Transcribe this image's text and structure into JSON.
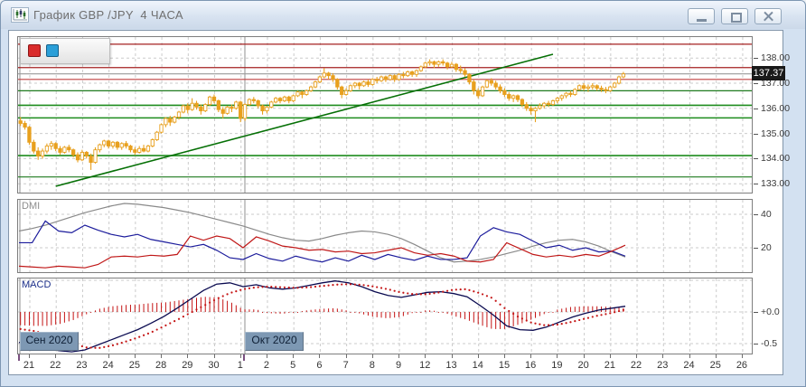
{
  "window": {
    "title": "График GBP /JPY  4 ЧАСА",
    "controls": [
      {
        "name": "minimize"
      },
      {
        "name": "restore"
      },
      {
        "name": "close"
      }
    ]
  },
  "mini_toolbar": {
    "buttons": [
      {
        "name": "red-marker",
        "color": "#d92b2b"
      },
      {
        "name": "blue-marker",
        "color": "#2b9fd8"
      }
    ]
  },
  "chart_data": {
    "main": {
      "type": "candlestick",
      "symbol": "GBP/JPY",
      "timeframe": "4 ЧАСА",
      "current_price": "137.37",
      "candle_color": "#e8a01e",
      "y_axis": {
        "ticks": [
          "138.00",
          "137.00",
          "136.00",
          "135.00",
          "134.00",
          "133.00"
        ],
        "values": [
          138,
          137,
          136,
          135,
          134,
          133
        ]
      },
      "h_lines": [
        {
          "price": 138.55,
          "color": "#a52020",
          "w": 1.2
        },
        {
          "price": 137.62,
          "color": "#a52020",
          "w": 1.2
        },
        {
          "price": 137.15,
          "color": "#c04040",
          "w": 1.1
        },
        {
          "price": 137.37,
          "color": "#9a9a9a",
          "w": 1.1
        },
        {
          "price": 136.7,
          "color": "#1e7a1e",
          "w": 1.2
        },
        {
          "price": 136.12,
          "color": "#1e8c1e",
          "w": 1.6
        },
        {
          "price": 135.62,
          "color": "#1e8c1e",
          "w": 1.6
        },
        {
          "price": 134.12,
          "color": "#1e8c1e",
          "w": 1.6
        },
        {
          "price": 133.27,
          "color": "#1e7a1e",
          "w": 1.2
        }
      ],
      "trend_line": {
        "i1": 8,
        "p1": 132.9,
        "i2": 121,
        "p2": 138.15,
        "color": "#067006"
      },
      "candles": [
        [
          135.5,
          135.65,
          135.3,
          135.4
        ],
        [
          135.4,
          135.5,
          135.15,
          135.25
        ],
        [
          135.25,
          135.3,
          134.55,
          134.65
        ],
        [
          134.65,
          134.75,
          134.2,
          134.3
        ],
        [
          134.3,
          134.45,
          133.95,
          134.1
        ],
        [
          134.1,
          134.4,
          134.0,
          134.3
        ],
        [
          134.3,
          134.6,
          134.2,
          134.5
        ],
        [
          134.5,
          134.7,
          134.35,
          134.6
        ],
        [
          134.6,
          134.65,
          134.3,
          134.4
        ],
        [
          134.4,
          134.5,
          134.15,
          134.25
        ],
        [
          134.25,
          134.5,
          134.2,
          134.45
        ],
        [
          134.45,
          134.55,
          134.25,
          134.35
        ],
        [
          134.35,
          134.4,
          134.05,
          134.15
        ],
        [
          134.15,
          134.25,
          133.85,
          133.95
        ],
        [
          133.95,
          134.35,
          133.9,
          134.25
        ],
        [
          134.25,
          134.3,
          134.0,
          134.1
        ],
        [
          134.1,
          134.2,
          133.55,
          133.85
        ],
        [
          133.85,
          134.45,
          133.8,
          134.35
        ],
        [
          134.35,
          134.6,
          134.25,
          134.55
        ],
        [
          134.55,
          134.75,
          134.45,
          134.7
        ],
        [
          134.7,
          134.75,
          134.4,
          134.5
        ],
        [
          134.5,
          134.7,
          134.4,
          134.65
        ],
        [
          134.65,
          134.7,
          134.35,
          134.45
        ],
        [
          134.45,
          134.65,
          134.35,
          134.6
        ],
        [
          134.6,
          134.7,
          134.4,
          134.5
        ],
        [
          134.5,
          134.55,
          134.25,
          134.35
        ],
        [
          134.35,
          134.45,
          134.15,
          134.25
        ],
        [
          134.25,
          134.5,
          134.2,
          134.4
        ],
        [
          134.4,
          134.55,
          134.25,
          134.3
        ],
        [
          134.3,
          134.55,
          134.25,
          134.5
        ],
        [
          134.5,
          134.8,
          134.45,
          134.75
        ],
        [
          134.75,
          135.1,
          134.7,
          135.05
        ],
        [
          135.05,
          135.4,
          135.0,
          135.35
        ],
        [
          135.35,
          135.65,
          135.25,
          135.6
        ],
        [
          135.6,
          135.7,
          135.3,
          135.45
        ],
        [
          135.45,
          135.7,
          135.4,
          135.65
        ],
        [
          135.65,
          135.9,
          135.55,
          135.85
        ],
        [
          135.85,
          136.15,
          135.8,
          136.1
        ],
        [
          136.1,
          136.2,
          135.8,
          135.95
        ],
        [
          135.95,
          136.4,
          135.9,
          136.2
        ],
        [
          136.2,
          136.3,
          135.95,
          136.05
        ],
        [
          136.05,
          136.15,
          135.75,
          135.9
        ],
        [
          135.9,
          136.2,
          135.85,
          136.15
        ],
        [
          136.15,
          136.5,
          136.1,
          136.45
        ],
        [
          136.45,
          136.55,
          136.2,
          136.3
        ],
        [
          136.3,
          136.35,
          135.85,
          135.95
        ],
        [
          135.95,
          136.05,
          135.6,
          135.8
        ],
        [
          135.8,
          136.1,
          135.75,
          136.05
        ],
        [
          136.05,
          136.15,
          135.85,
          136.0
        ],
        [
          136.0,
          136.3,
          135.95,
          136.25
        ],
        [
          136.25,
          136.3,
          135.45,
          135.6
        ],
        [
          135.6,
          136.2,
          135.5,
          136.15
        ],
        [
          136.15,
          136.4,
          136.1,
          136.35
        ],
        [
          136.35,
          136.45,
          136.2,
          136.3
        ],
        [
          136.3,
          136.35,
          136.0,
          136.1
        ],
        [
          136.1,
          136.15,
          135.75,
          135.9
        ],
        [
          135.9,
          136.1,
          135.8,
          136.05
        ],
        [
          136.05,
          136.3,
          136.0,
          136.25
        ],
        [
          136.25,
          136.45,
          136.2,
          136.4
        ],
        [
          136.4,
          136.45,
          136.2,
          136.3
        ],
        [
          136.3,
          136.5,
          136.25,
          136.45
        ],
        [
          136.45,
          136.5,
          136.2,
          136.3
        ],
        [
          136.3,
          136.55,
          136.25,
          136.5
        ],
        [
          136.5,
          136.7,
          136.45,
          136.65
        ],
        [
          136.65,
          136.7,
          136.4,
          136.55
        ],
        [
          136.55,
          136.75,
          136.5,
          136.7
        ],
        [
          136.7,
          136.9,
          136.65,
          136.85
        ],
        [
          136.85,
          137.1,
          136.8,
          137.05
        ],
        [
          137.05,
          137.3,
          137.0,
          137.25
        ],
        [
          137.25,
          137.6,
          137.2,
          137.4
        ],
        [
          137.4,
          137.45,
          137.15,
          137.3
        ],
        [
          137.3,
          137.4,
          137.05,
          137.15
        ],
        [
          137.15,
          137.2,
          136.75,
          136.85
        ],
        [
          136.85,
          136.9,
          136.4,
          136.55
        ],
        [
          136.55,
          136.8,
          136.5,
          136.7
        ],
        [
          136.7,
          136.95,
          136.65,
          136.9
        ],
        [
          136.9,
          137.05,
          136.8,
          137.0
        ],
        [
          137.0,
          137.05,
          136.75,
          136.9
        ],
        [
          136.9,
          137.1,
          136.85,
          137.05
        ],
        [
          137.05,
          137.15,
          136.85,
          136.95
        ],
        [
          136.95,
          137.2,
          136.9,
          137.15
        ],
        [
          137.15,
          137.25,
          137.0,
          137.1
        ],
        [
          137.1,
          137.3,
          137.05,
          137.25
        ],
        [
          137.25,
          137.3,
          137.05,
          137.15
        ],
        [
          137.15,
          137.35,
          137.1,
          137.3
        ],
        [
          137.3,
          137.35,
          137.05,
          137.15
        ],
        [
          137.15,
          137.4,
          137.1,
          137.35
        ],
        [
          137.35,
          137.45,
          137.2,
          137.3
        ],
        [
          137.3,
          137.5,
          137.25,
          137.45
        ],
        [
          137.45,
          137.5,
          137.25,
          137.35
        ],
        [
          137.35,
          137.55,
          137.25,
          137.5
        ],
        [
          137.5,
          137.7,
          137.45,
          137.65
        ],
        [
          137.65,
          137.85,
          137.6,
          137.8
        ],
        [
          137.8,
          137.95,
          137.7,
          137.85
        ],
        [
          137.85,
          137.9,
          137.6,
          137.75
        ],
        [
          137.75,
          137.9,
          137.65,
          137.85
        ],
        [
          137.85,
          137.95,
          137.7,
          137.8
        ],
        [
          137.8,
          137.85,
          137.55,
          137.65
        ],
        [
          137.65,
          137.85,
          137.6,
          137.75
        ],
        [
          137.75,
          137.8,
          137.45,
          137.55
        ],
        [
          137.55,
          137.7,
          137.4,
          137.5
        ],
        [
          137.5,
          137.6,
          137.25,
          137.35
        ],
        [
          137.35,
          137.4,
          136.95,
          137.05
        ],
        [
          137.05,
          137.15,
          136.55,
          136.7
        ],
        [
          136.7,
          136.8,
          136.4,
          136.5
        ],
        [
          136.5,
          136.9,
          136.45,
          136.85
        ],
        [
          136.85,
          137.15,
          136.8,
          137.1
        ],
        [
          137.1,
          137.2,
          136.9,
          137.0
        ],
        [
          137.0,
          137.1,
          136.75,
          136.85
        ],
        [
          136.85,
          136.95,
          136.6,
          136.7
        ],
        [
          136.7,
          136.8,
          136.45,
          136.55
        ],
        [
          136.55,
          136.65,
          136.3,
          136.4
        ],
        [
          136.4,
          136.55,
          136.25,
          136.5
        ],
        [
          136.5,
          136.55,
          136.25,
          136.35
        ],
        [
          136.35,
          136.4,
          136.05,
          136.15
        ],
        [
          136.15,
          136.25,
          135.9,
          136.0
        ],
        [
          136.0,
          136.1,
          135.75,
          135.9
        ],
        [
          135.9,
          136.05,
          135.45,
          136.0
        ],
        [
          136.0,
          136.2,
          135.95,
          136.1
        ],
        [
          136.1,
          136.25,
          136.0,
          136.2
        ],
        [
          136.2,
          136.3,
          136.05,
          136.15
        ],
        [
          136.15,
          136.35,
          136.1,
          136.3
        ],
        [
          136.3,
          136.45,
          136.2,
          136.4
        ],
        [
          136.4,
          136.55,
          136.3,
          136.5
        ],
        [
          136.5,
          136.65,
          136.4,
          136.6
        ],
        [
          136.6,
          136.7,
          136.45,
          136.55
        ],
        [
          136.55,
          136.8,
          136.5,
          136.75
        ],
        [
          136.75,
          136.95,
          136.7,
          136.9
        ],
        [
          136.9,
          137.0,
          136.7,
          136.8
        ],
        [
          136.8,
          136.95,
          136.65,
          136.85
        ],
        [
          136.85,
          137.0,
          136.75,
          136.9
        ],
        [
          136.9,
          136.95,
          136.7,
          136.8
        ],
        [
          136.8,
          136.9,
          136.65,
          136.75
        ],
        [
          136.75,
          136.85,
          136.6,
          136.7
        ],
        [
          136.7,
          136.9,
          136.65,
          136.85
        ],
        [
          136.85,
          137.05,
          136.8,
          137.0
        ],
        [
          137.0,
          137.3,
          136.95,
          137.25
        ],
        [
          137.25,
          137.45,
          137.2,
          137.37
        ]
      ]
    },
    "dmi": {
      "type": "line",
      "label": "DMI",
      "y_ticks": [
        "40",
        "20"
      ],
      "y_values": [
        40,
        20
      ],
      "series": [
        {
          "name": "ADX",
          "color": "#8a8a8a",
          "values": [
            30,
            31.5,
            33.5,
            36,
            38.5,
            41,
            43,
            45,
            46.5,
            46,
            45,
            44,
            42.5,
            41,
            39,
            37,
            35,
            33,
            30.5,
            28,
            26,
            24.5,
            24,
            25.5,
            27.5,
            29,
            30,
            29.5,
            28,
            25.5,
            22,
            18,
            14,
            11.5,
            12,
            13,
            14.5,
            16.5,
            18.5,
            21,
            23,
            24.5,
            25,
            23.5,
            21,
            17.5,
            14.5
          ]
        },
        {
          "name": "+DI",
          "color": "#1c1c9c",
          "values": [
            23,
            23,
            36,
            30,
            29,
            33.5,
            30.5,
            28,
            26.5,
            28,
            25,
            23.5,
            22,
            20.5,
            22,
            18.5,
            14,
            13,
            16.5,
            13.5,
            12,
            15,
            13,
            11.5,
            14,
            12,
            15.5,
            13,
            16,
            14,
            12.5,
            15,
            13,
            13,
            14,
            27,
            32,
            29.5,
            28,
            24,
            20,
            21.5,
            18.5,
            20,
            17.5,
            18,
            15
          ]
        },
        {
          "name": "-DI",
          "color": "#c01818",
          "values": [
            9,
            8.5,
            8,
            9,
            8.5,
            8,
            10,
            14.5,
            15,
            14.5,
            15.5,
            15,
            16,
            27,
            24.5,
            27,
            25.5,
            20,
            26.5,
            24,
            21,
            20,
            18.5,
            19,
            17.5,
            18,
            16.5,
            17,
            18.5,
            20,
            17,
            15.5,
            16.5,
            15,
            12,
            11.5,
            13,
            23,
            19.5,
            16,
            14.5,
            15.5,
            14.5,
            16,
            15,
            18,
            21.5
          ]
        }
      ]
    },
    "macd": {
      "type": "macd",
      "label": "MACD",
      "y_ticks": [
        "+0.0",
        "-0.5"
      ],
      "y_values": [
        0,
        -0.5
      ],
      "line_color": "#0a0a50",
      "signal_color": "#c41414",
      "macd": [
        -0.48,
        -0.52,
        -0.57,
        -0.61,
        -0.63,
        -0.6,
        -0.52,
        -0.44,
        -0.36,
        -0.28,
        -0.18,
        -0.07,
        0.06,
        0.2,
        0.34,
        0.44,
        0.46,
        0.4,
        0.43,
        0.38,
        0.36,
        0.38,
        0.42,
        0.46,
        0.49,
        0.46,
        0.4,
        0.32,
        0.26,
        0.23,
        0.27,
        0.31,
        0.32,
        0.29,
        0.24,
        0.1,
        -0.05,
        -0.22,
        -0.28,
        -0.29,
        -0.24,
        -0.16,
        -0.08,
        -0.02,
        0.03,
        0.06,
        0.09
      ],
      "signal": [
        -0.27,
        -0.3,
        -0.35,
        -0.42,
        -0.5,
        -0.56,
        -0.57,
        -0.53,
        -0.47,
        -0.4,
        -0.32,
        -0.22,
        -0.12,
        -0.01,
        0.1,
        0.21,
        0.3,
        0.36,
        0.39,
        0.4,
        0.39,
        0.38,
        0.39,
        0.41,
        0.43,
        0.44,
        0.43,
        0.4,
        0.36,
        0.31,
        0.28,
        0.28,
        0.31,
        0.35,
        0.36,
        0.3,
        0.22,
        0.05,
        -0.08,
        -0.17,
        -0.21,
        -0.2,
        -0.16,
        -0.11,
        -0.06,
        -0.02,
        0.03
      ]
    },
    "x_axis": {
      "dates": [
        "21",
        "22",
        "23",
        "24",
        "25",
        "28",
        "29",
        "30",
        "1",
        "2",
        "5",
        "6",
        "7",
        "8",
        "9",
        "12",
        "13",
        "14",
        "15",
        "16",
        "19",
        "20",
        "21",
        "22",
        "23",
        "24",
        "25",
        "26"
      ],
      "months": [
        {
          "label": "Сен 2020"
        },
        {
          "label": "Окт 2020"
        }
      ]
    }
  }
}
